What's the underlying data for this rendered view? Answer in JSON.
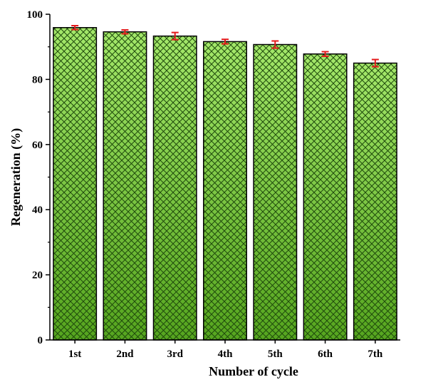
{
  "chart_data": {
    "type": "bar",
    "categories": [
      "1st",
      "2nd",
      "3rd",
      "4th",
      "5th",
      "6th",
      "7th"
    ],
    "values": [
      95.9,
      94.6,
      93.3,
      91.6,
      90.7,
      87.8,
      85.0
    ],
    "errors": [
      0.6,
      0.6,
      1.1,
      0.7,
      1.1,
      0.7,
      1.1
    ],
    "title": "",
    "xlabel": "Number of cycle",
    "ylabel": "Regeneration (%)",
    "ylim": [
      0,
      100
    ],
    "yticks": [
      0,
      20,
      40,
      60,
      80,
      100
    ],
    "grid": false,
    "legend": "none",
    "colors": {
      "bar_fill_top": "#a4e86a",
      "bar_fill_bottom": "#55a51e",
      "hatch": "#1f4a0c",
      "error_bar": "#e41a1c",
      "axis": "#000000"
    }
  }
}
